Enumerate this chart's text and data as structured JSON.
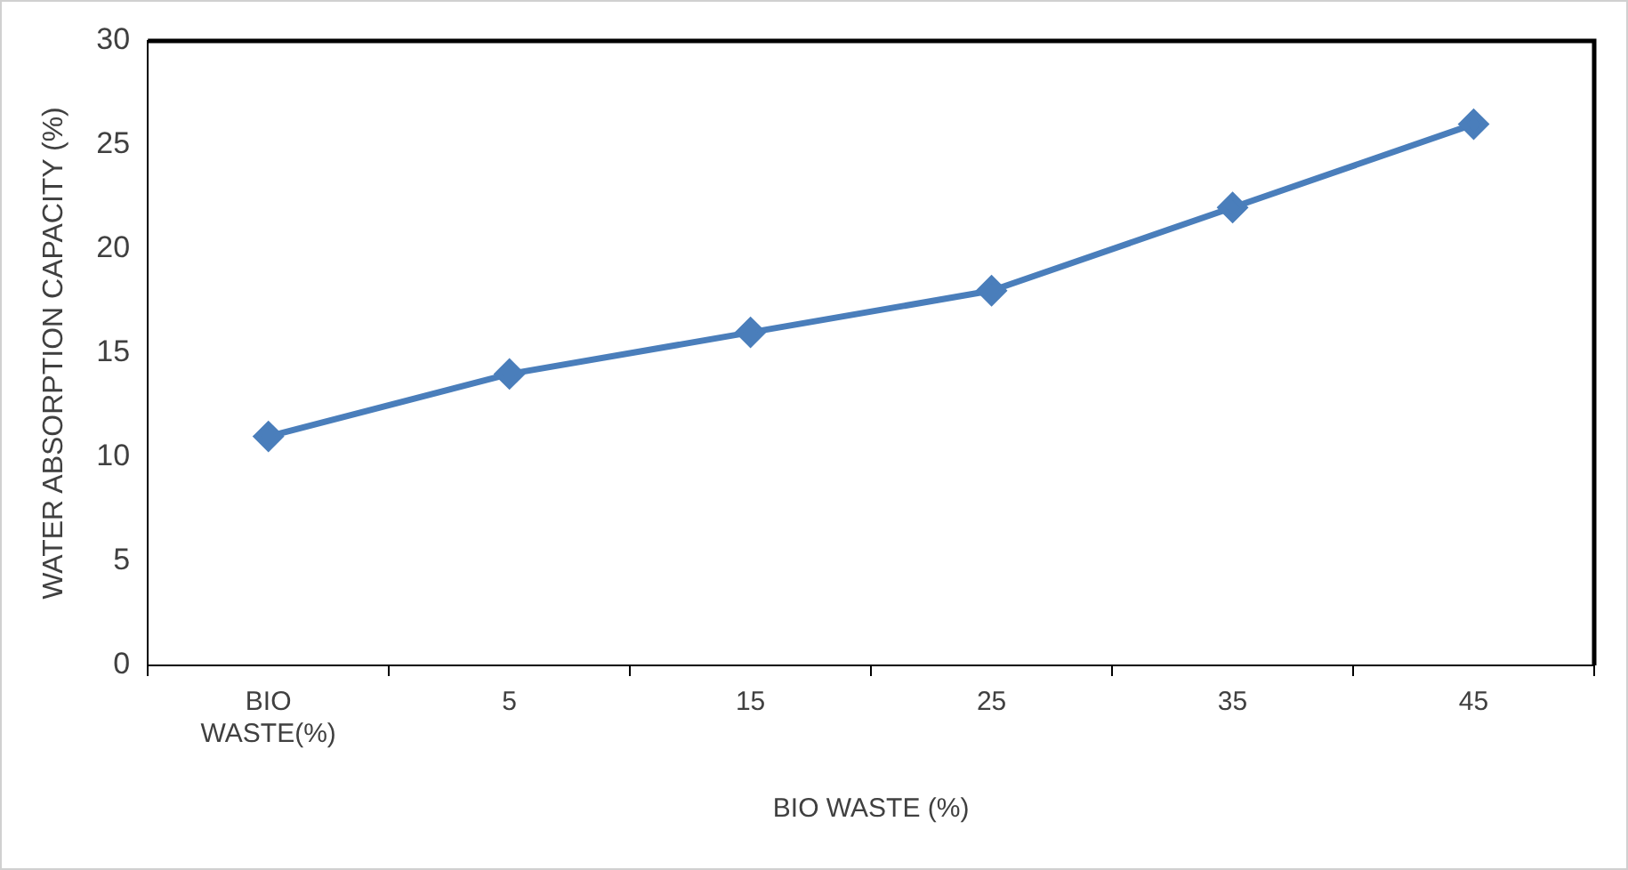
{
  "chart_data": {
    "type": "line",
    "xlabel": "BIO WASTE (%)",
    "ylabel": "WATER ABSORPTION CAPACITY (%)",
    "categories": [
      "BIO WASTE(%)",
      "5",
      "15",
      "25",
      "35",
      "45"
    ],
    "series": [
      {
        "color": "#4a7ebb",
        "values": [
          11,
          14,
          16,
          18,
          22,
          26
        ]
      }
    ],
    "ylim": [
      0,
      30
    ],
    "yticks": [
      0,
      5,
      10,
      15,
      20,
      25,
      30
    ],
    "grid": false,
    "legend": false,
    "marker": "diamond",
    "line_style": "solid"
  }
}
